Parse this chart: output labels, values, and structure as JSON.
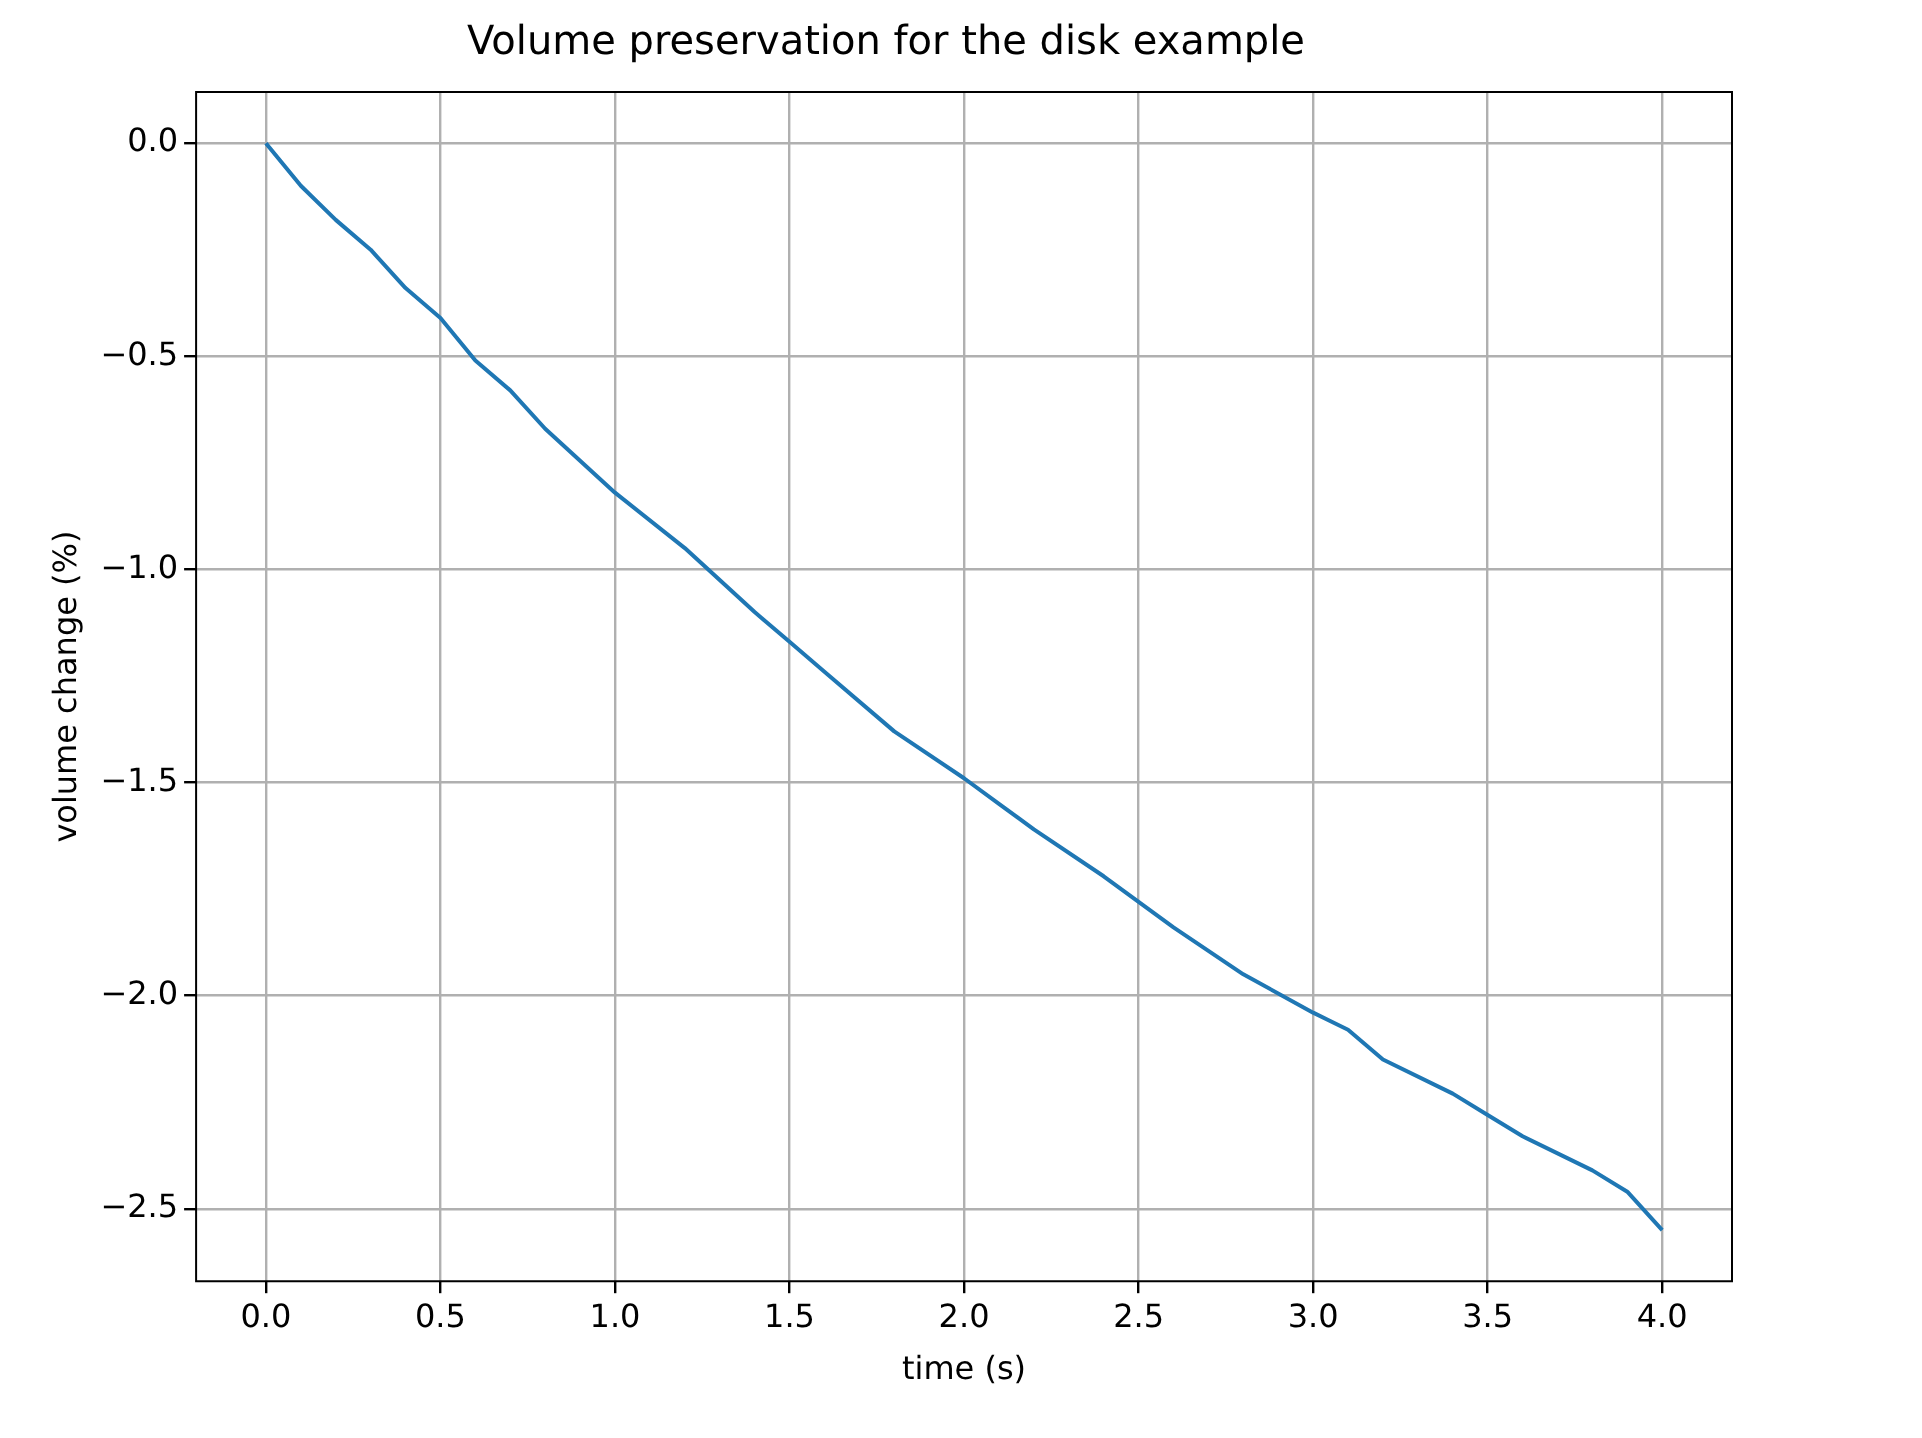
{
  "chart_data": {
    "type": "line",
    "title": "Volume preservation for the disk example",
    "xlabel": "time (s)",
    "ylabel": "volume change (%)",
    "x": [
      0,
      0.05,
      0.1,
      0.2,
      0.3,
      0.4,
      0.5,
      0.6,
      0.7,
      0.8,
      1.0,
      1.2,
      1.4,
      1.5,
      1.6,
      1.8,
      2.0,
      2.1,
      2.2,
      2.4,
      2.5,
      2.6,
      2.8,
      3.0,
      3.1,
      3.2,
      3.4,
      3.5,
      3.6,
      3.8,
      3.9,
      4.0
    ],
    "series": [
      {
        "color": "#1f77b4",
        "values": [
          0,
          -0.05,
          -0.1,
          -0.18,
          -0.25,
          -0.34,
          -0.41,
          -0.51,
          -0.58,
          -0.67,
          -0.82,
          -0.95,
          -1.1,
          -1.17,
          -1.24,
          -1.38,
          -1.49,
          -1.55,
          -1.61,
          -1.72,
          -1.78,
          -1.84,
          -1.95,
          -2.04,
          -2.08,
          -2.15,
          -2.23,
          -2.28,
          -2.33,
          -2.41,
          -2.46,
          -2.55
        ]
      }
    ],
    "xlim": [
      -0.2,
      4.2
    ],
    "xticks": [
      {
        "value": 0,
        "label": "0.0"
      },
      {
        "value": 0.5,
        "label": "0.5"
      },
      {
        "value": 1,
        "label": "1.0"
      },
      {
        "value": 1.5,
        "label": "1.5"
      },
      {
        "value": 2,
        "label": "2.0"
      },
      {
        "value": 2.5,
        "label": "2.5"
      },
      {
        "value": 3,
        "label": "3.0"
      },
      {
        "value": 3.5,
        "label": "3.5"
      },
      {
        "value": 4,
        "label": "4.0"
      }
    ],
    "ylim": [
      -2.67,
      0.12
    ],
    "yticks": [
      {
        "value": 0,
        "label": "0.0"
      },
      {
        "value": -0.5,
        "label": "−0.5"
      },
      {
        "value": -1,
        "label": "−1.0"
      },
      {
        "value": -1.5,
        "label": "−1.5"
      },
      {
        "value": -2,
        "label": "−2.0"
      },
      {
        "value": -2.5,
        "label": "−2.5"
      }
    ],
    "grid": true,
    "legend": false,
    "marker": "none",
    "line_style": "solid"
  }
}
